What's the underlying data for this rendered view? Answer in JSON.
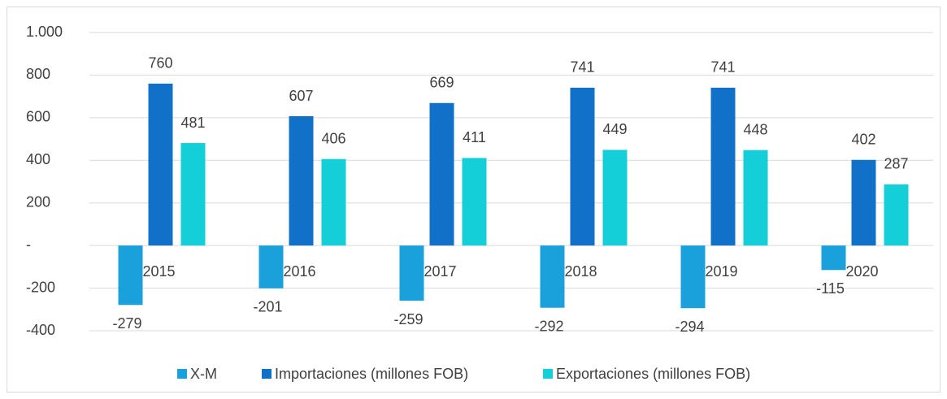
{
  "chart_data": {
    "type": "bar",
    "categories": [
      "2015",
      "2016",
      "2017",
      "2018",
      "2019",
      "2020"
    ],
    "series": [
      {
        "name": "X-M",
        "color": "#1aa0da",
        "values": [
          -279,
          -201,
          -259,
          -292,
          -294,
          -115
        ]
      },
      {
        "name": "Importaciones (millones FOB)",
        "color": "#1170c8",
        "values": [
          760,
          607,
          669,
          741,
          741,
          402
        ]
      },
      {
        "name": "Exportaciones (millones FOB)",
        "color": "#14cfd8",
        "values": [
          481,
          406,
          411,
          449,
          448,
          287
        ]
      }
    ],
    "ylim": [
      -400,
      1000
    ],
    "yticks": [
      -400,
      -200,
      {
        "value": 0,
        "label": "-"
      },
      200,
      400,
      600,
      {
        "value": 800,
        "label": "800"
      },
      {
        "value": 1000,
        "label": "1.000"
      }
    ],
    "grid": true,
    "legend": "bottom"
  }
}
